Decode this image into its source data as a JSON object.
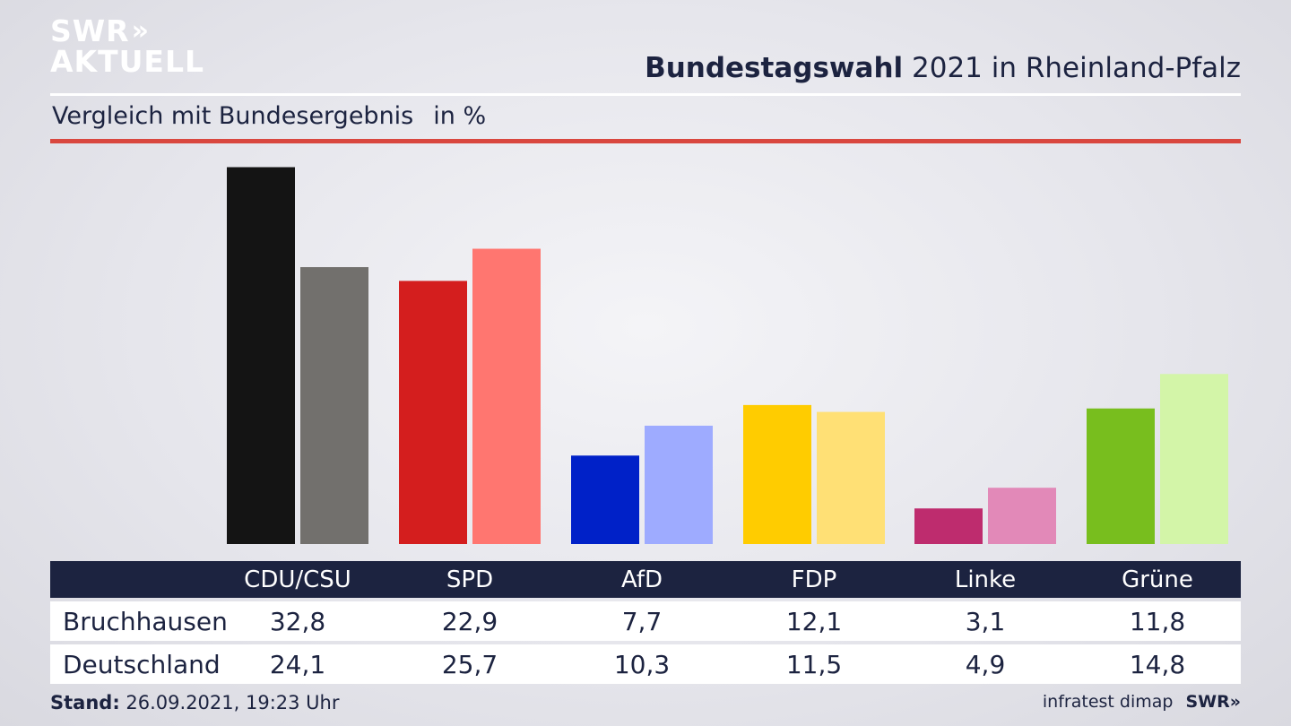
{
  "header": {
    "logo_line1": "SWR",
    "logo_chevrons": "»",
    "logo_line2": "AKTUELL",
    "title_bold": "Bundestagswahl",
    "title_rest": " 2021 in Rheinland-Pfalz",
    "subtitle": "Vergleich mit Bundesergebnis",
    "unit": "in %"
  },
  "chart_data": {
    "type": "bar",
    "categories": [
      "CDU/CSU",
      "SPD",
      "AfD",
      "FDP",
      "Linke",
      "Grüne"
    ],
    "series": [
      {
        "name": "Bruchhausen",
        "values": [
          32.8,
          22.9,
          7.7,
          12.1,
          3.1,
          11.8
        ],
        "colors": [
          "#141414",
          "#d41e1e",
          "#0021c8",
          "#ffcc00",
          "#be2c6e",
          "#78be1e"
        ]
      },
      {
        "name": "Deutschland",
        "values": [
          24.1,
          25.7,
          10.3,
          11.5,
          4.9,
          14.8
        ],
        "colors": [
          "#72706d",
          "#ff7670",
          "#9eabff",
          "#ffe075",
          "#e289b8",
          "#d3f5a8"
        ]
      }
    ],
    "grid": false,
    "legend": "table-below"
  },
  "footer": {
    "stand_label": "Stand:",
    "stand_value": " 26.09.2021, 19:23 Uhr",
    "source": "infratest dimap",
    "brand": "SWR»"
  }
}
